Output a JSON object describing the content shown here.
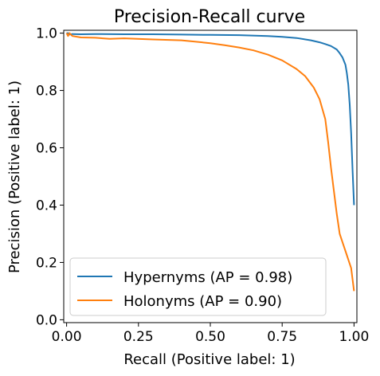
{
  "chart_data": {
    "type": "line",
    "title": "Precision-Recall curve",
    "xlabel": "Recall (Positive label: 1)",
    "ylabel": "Precision (Positive label: 1)",
    "xlim": [
      -0.01,
      1.01
    ],
    "ylim": [
      -0.01,
      1.01
    ],
    "xticks": [
      0.0,
      0.25,
      0.5,
      0.75,
      1.0
    ],
    "xtick_labels": [
      "0.00",
      "0.25",
      "0.50",
      "0.75",
      "1.00"
    ],
    "yticks": [
      0.0,
      0.2,
      0.4,
      0.6,
      0.8,
      1.0
    ],
    "ytick_labels": [
      "0.0",
      "0.2",
      "0.4",
      "0.6",
      "0.8",
      "1.0"
    ],
    "grid": false,
    "legend_position": "lower-left",
    "series": [
      {
        "name": "Hypernyms (AP = 0.98)",
        "color": "#1f77b4",
        "x": [
          0.0,
          0.005,
          0.01,
          0.02,
          0.05,
          0.1,
          0.2,
          0.3,
          0.4,
          0.5,
          0.6,
          0.7,
          0.75,
          0.8,
          0.85,
          0.88,
          0.9,
          0.92,
          0.94,
          0.95,
          0.96,
          0.97,
          0.975,
          0.98,
          0.985,
          0.99,
          0.995,
          1.0
        ],
        "y": [
          1.0,
          1.0,
          0.995,
          0.997,
          0.996,
          0.997,
          0.996,
          0.996,
          0.995,
          0.994,
          0.993,
          0.99,
          0.987,
          0.983,
          0.975,
          0.968,
          0.962,
          0.955,
          0.943,
          0.93,
          0.915,
          0.89,
          0.86,
          0.82,
          0.75,
          0.65,
          0.52,
          0.4
        ]
      },
      {
        "name": "Holonyms (AP = 0.90)",
        "color": "#ff7f0e",
        "x": [
          0.0,
          0.005,
          0.01,
          0.02,
          0.05,
          0.1,
          0.15,
          0.2,
          0.3,
          0.4,
          0.5,
          0.55,
          0.6,
          0.65,
          0.7,
          0.75,
          0.8,
          0.83,
          0.86,
          0.88,
          0.9,
          0.91,
          0.92,
          0.93,
          0.94,
          0.95,
          0.96,
          0.97,
          0.98,
          0.99,
          0.995,
          1.0
        ],
        "y": [
          1.0,
          0.99,
          1.0,
          0.99,
          0.985,
          0.984,
          0.98,
          0.982,
          0.978,
          0.975,
          0.965,
          0.958,
          0.95,
          0.94,
          0.925,
          0.905,
          0.875,
          0.85,
          0.81,
          0.77,
          0.7,
          0.62,
          0.53,
          0.45,
          0.37,
          0.3,
          0.27,
          0.24,
          0.21,
          0.18,
          0.14,
          0.1
        ]
      }
    ]
  }
}
